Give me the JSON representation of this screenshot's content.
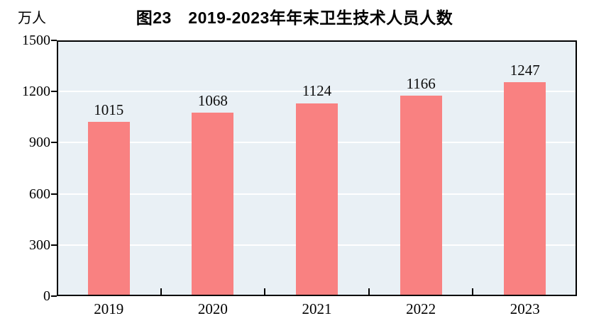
{
  "chart_data": {
    "type": "bar",
    "title": "图23　2019-2023年年末卫生技术人员人数",
    "unit_label": "万人",
    "categories": [
      "2019",
      "2020",
      "2021",
      "2022",
      "2023"
    ],
    "values": [
      1015,
      1068,
      1124,
      1166,
      1247
    ],
    "series_name": "年末卫生技术人员人数",
    "ylabel": "万人",
    "xlabel": "",
    "ylim": [
      0,
      1500
    ],
    "yticks": [
      0,
      300,
      600,
      900,
      1200,
      1500
    ],
    "grid": true,
    "legend_position": "none",
    "colors": {
      "bar_fill": "#f98181",
      "plot_background": "#e9f0f5",
      "gridline": "#ffffff",
      "axis": "#000000",
      "text": "#000000"
    }
  }
}
